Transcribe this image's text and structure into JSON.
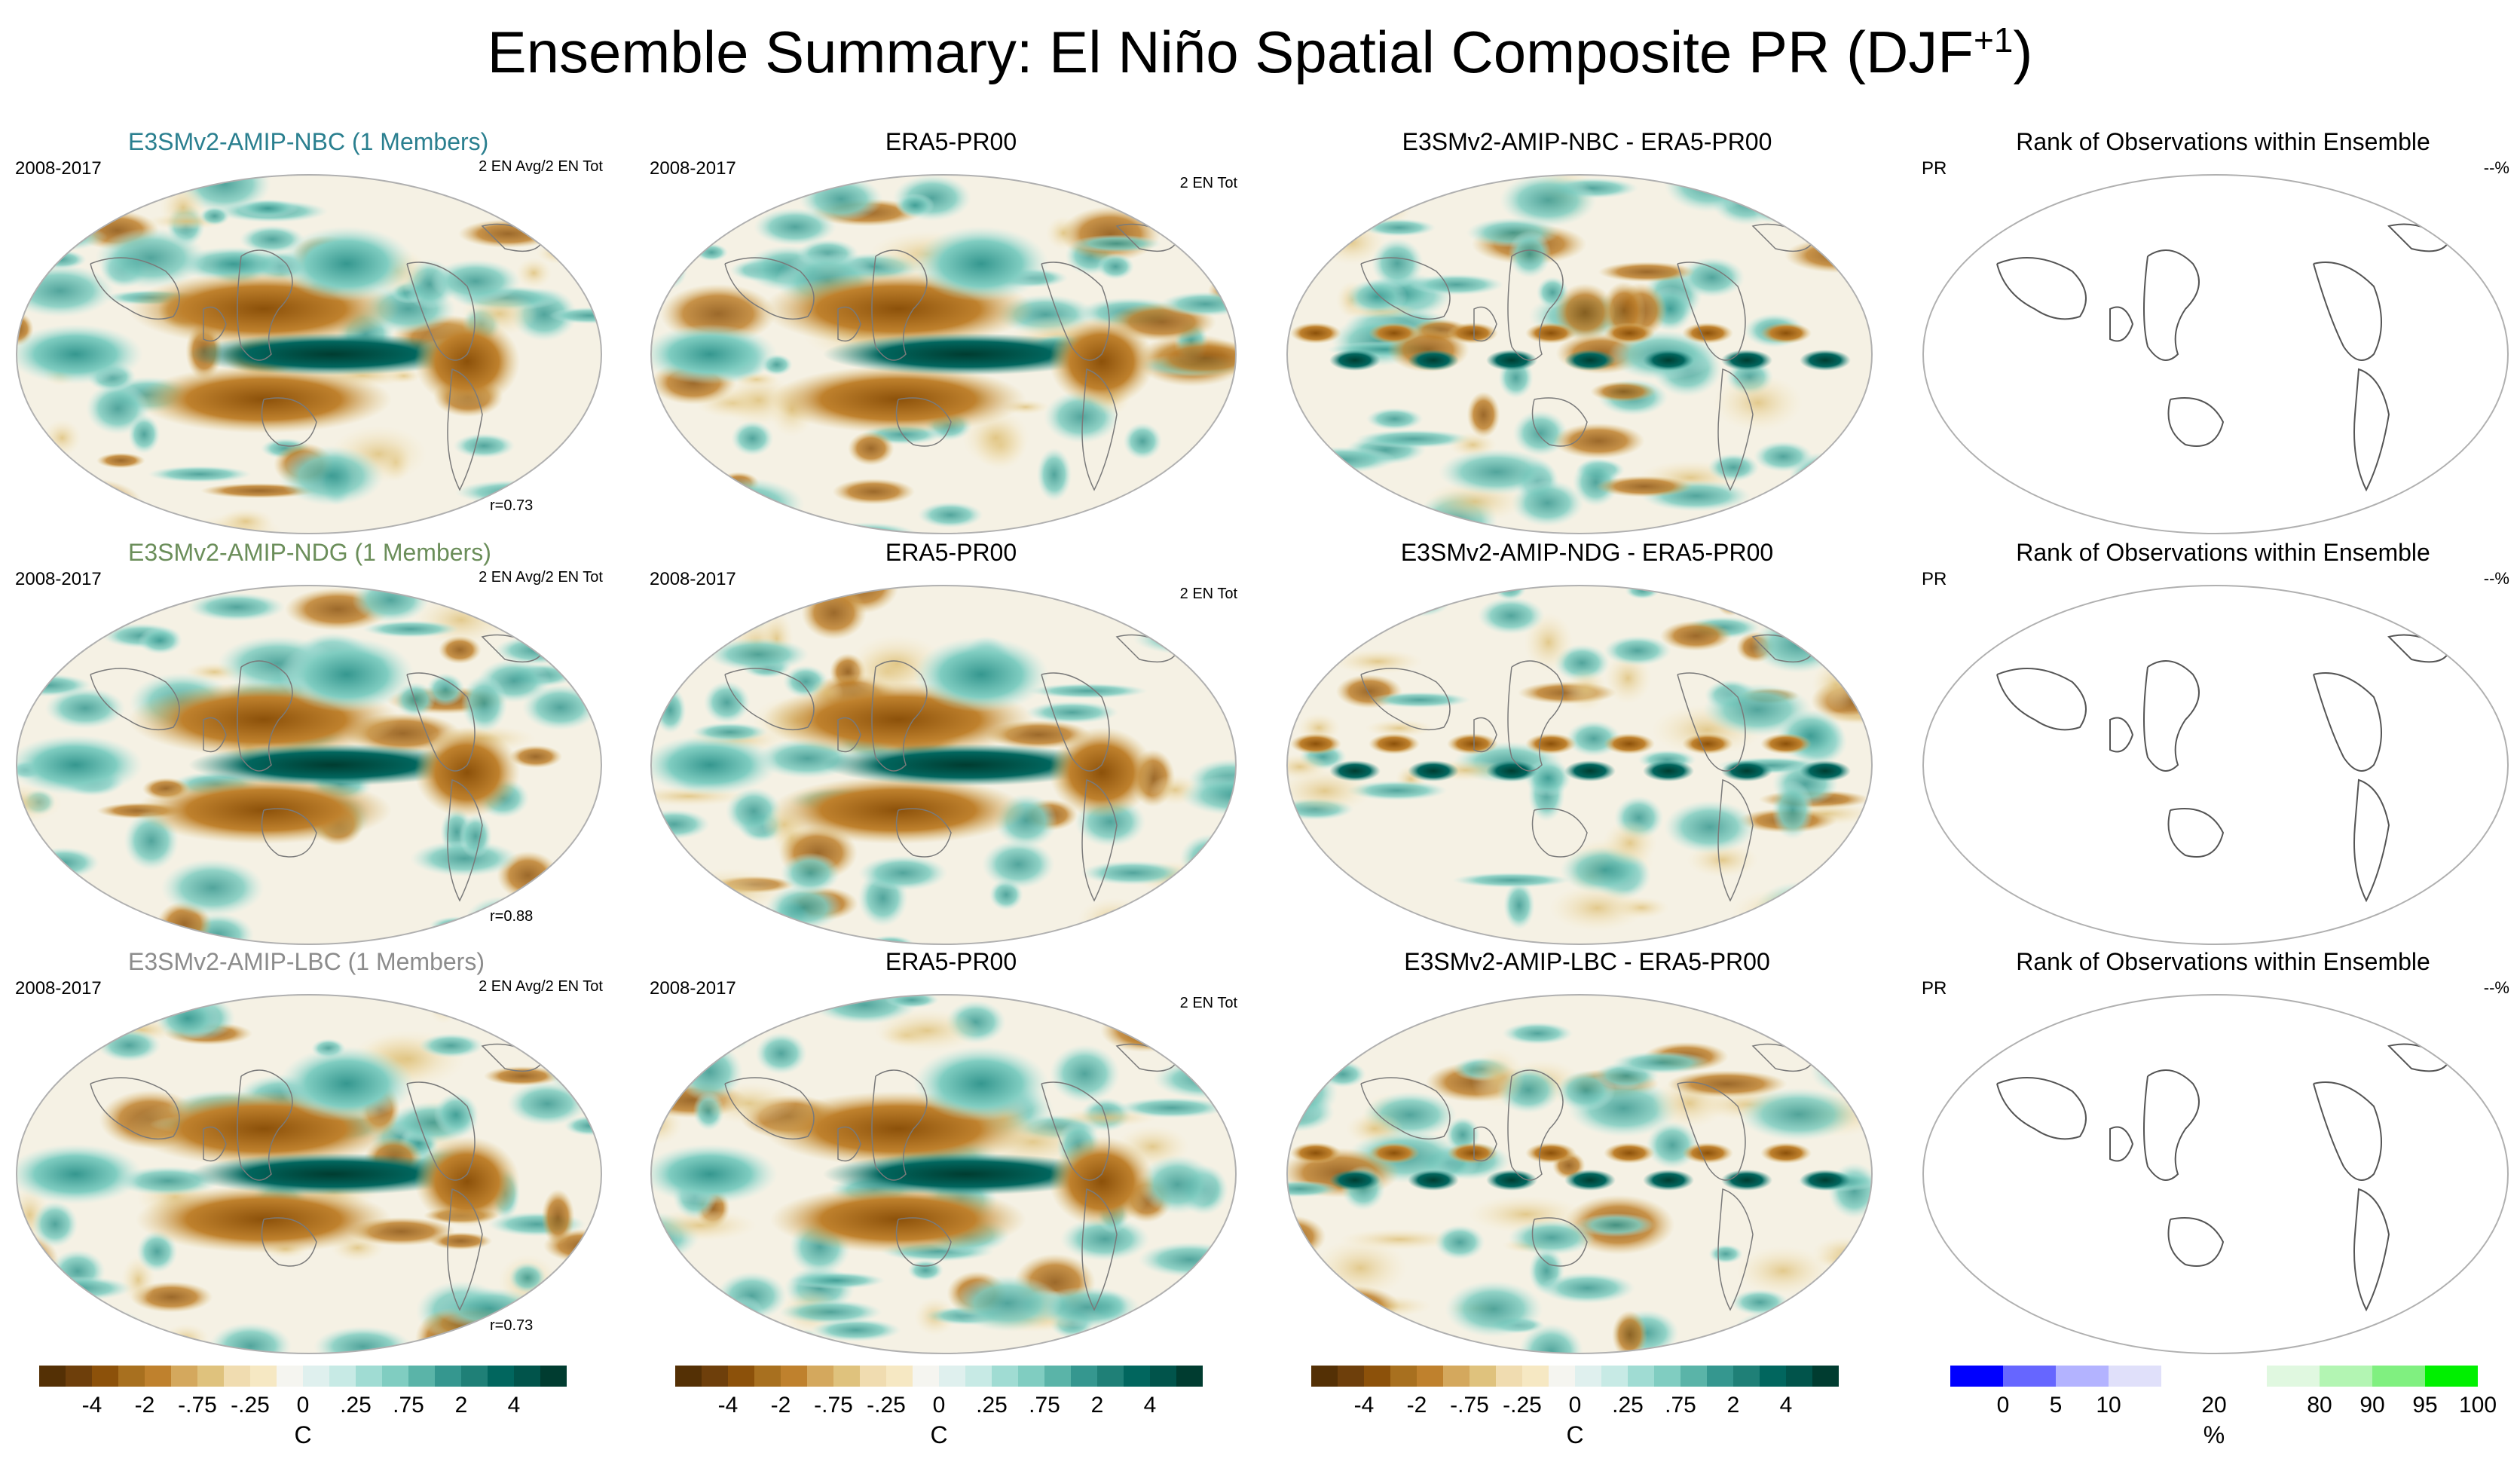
{
  "figure": {
    "title_main": "Ensemble Summary: El Niño Spatial Composite PR (DJF",
    "title_sup": "+1",
    "title_close": ")"
  },
  "rows": [
    {
      "model_title": "E3SMv2-AMIP-NBC (1 Members)",
      "model_color": "#2a7f8f",
      "period": "2008-2017",
      "model_note": "2 EN Avg/2 EN Tot",
      "correlation": "r=0.73",
      "obs_title": "ERA5-PR00",
      "obs_period": "2008-2017",
      "obs_note": "2 EN Tot",
      "diff_title": "E3SMv2-AMIP-NBC - ERA5-PR00",
      "rank_title": "Rank of Observations within Ensemble",
      "rank_left": "PR",
      "rank_right": "--%"
    },
    {
      "model_title": "E3SMv2-AMIP-NDG (1 Members)",
      "model_color": "#6b8e5a",
      "period": "2008-2017",
      "model_note": "2 EN Avg/2 EN Tot",
      "correlation": "r=0.88",
      "obs_title": "ERA5-PR00",
      "obs_period": "2008-2017",
      "obs_note": "2 EN Tot",
      "diff_title": "E3SMv2-AMIP-NDG - ERA5-PR00",
      "rank_title": "Rank of Observations within Ensemble",
      "rank_left": "PR",
      "rank_right": "--%"
    },
    {
      "model_title": "E3SMv2-AMIP-LBC (1 Members)",
      "model_color": "#8c8c8c",
      "period": "2008-2017",
      "model_note": "2 EN Avg/2 EN Tot",
      "correlation": "r=0.73",
      "obs_title": "ERA5-PR00",
      "obs_period": "2008-2017",
      "obs_note": "2 EN Tot",
      "diff_title": "E3SMv2-AMIP-LBC - ERA5-PR00",
      "rank_title": "Rank of Observations within Ensemble",
      "rank_left": "PR",
      "rank_right": "--%"
    }
  ],
  "colorbars": {
    "brbg": {
      "colors": [
        "#543005",
        "#6e3f0b",
        "#8c510a",
        "#a8701f",
        "#bf812d",
        "#d4a85d",
        "#dfc27d",
        "#f0dcb0",
        "#f6e8c3",
        "#f5f5f0",
        "#dff0ee",
        "#c7eae5",
        "#a0dcd3",
        "#80cdc1",
        "#5ab4a8",
        "#35978f",
        "#1f8077",
        "#01665e",
        "#01544b",
        "#003c30"
      ],
      "ticks": [
        "-4",
        "-2",
        "-.75",
        "-.25",
        "0",
        ".25",
        ".75",
        "2",
        "4"
      ],
      "unit": "C"
    },
    "rank": {
      "colors": [
        "#0000ff",
        "#6666ff",
        "#b3b3ff",
        "#e0e0fa",
        "#ffffff",
        "#ffffff",
        "#e0f8e0",
        "#b3f5b3",
        "#80f080",
        "#00f000"
      ],
      "ticks": [
        "0",
        "5",
        "10",
        "20",
        "80",
        "90",
        "95",
        "100"
      ],
      "unit": "%"
    }
  },
  "chart_data": [
    {
      "type": "heatmap",
      "title": "Ensemble Summary: El Niño Spatial Composite PR (DJF+1)",
      "panels": [
        "E3SMv2-AMIP-NBC (1 Members)",
        "ERA5-PR00",
        "E3SMv2-AMIP-NBC - ERA5-PR00",
        "Rank of Observations within Ensemble",
        "E3SMv2-AMIP-NDG (1 Members)",
        "ERA5-PR00",
        "E3SMv2-AMIP-NDG - ERA5-PR00",
        "Rank of Observations within Ensemble",
        "E3SMv2-AMIP-LBC (1 Members)",
        "ERA5-PR00",
        "E3SMv2-AMIP-LBC - ERA5-PR00",
        "Rank of Observations within Ensemble"
      ],
      "pattern_correlations": [
        0.73,
        0.88,
        0.73
      ],
      "colorbar_levels": [
        -4,
        -2,
        -0.75,
        -0.25,
        0,
        0.25,
        0.75,
        2,
        4
      ],
      "colorbar_unit": "C",
      "rank_levels": [
        0,
        5,
        10,
        20,
        80,
        90,
        95,
        100
      ],
      "rank_unit": "%",
      "period": "2008-2017"
    }
  ]
}
